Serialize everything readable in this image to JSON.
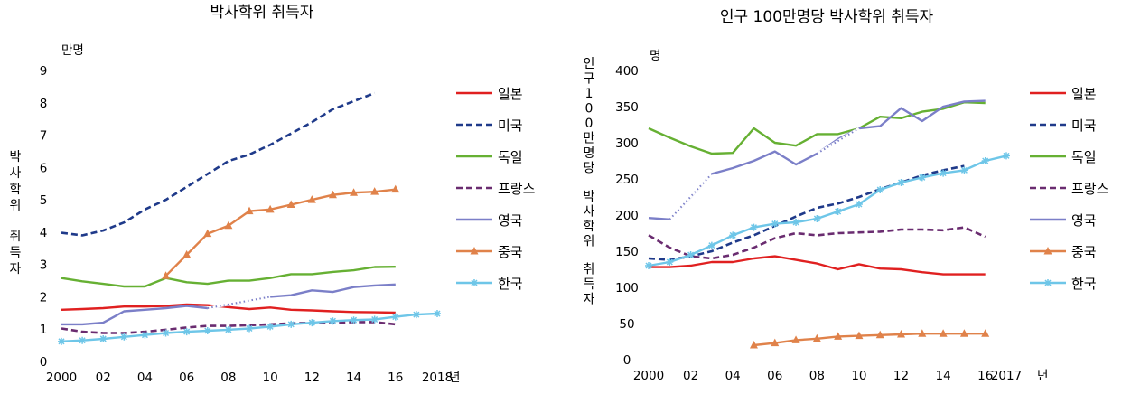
{
  "chart_data": [
    {
      "type": "line",
      "title": "박사학위 취득자",
      "unit_label": "만명",
      "ylabel": "박사학위 취득자",
      "xlabel": "년",
      "ylim": [
        0,
        9
      ],
      "yticks": [
        "0",
        "1",
        "2",
        "3",
        "4",
        "5",
        "6",
        "7",
        "8",
        "9"
      ],
      "xlim": [
        2000,
        2018
      ],
      "xticks": [
        "2000",
        "02",
        "04",
        "06",
        "08",
        "10",
        "12",
        "14",
        "16",
        "2018"
      ],
      "series": [
        {
          "name": "일본",
          "color": "#e02020",
          "style": "solid",
          "marker": "",
          "x": [
            2000,
            2001,
            2002,
            2003,
            2004,
            2005,
            2006,
            2007,
            2008,
            2009,
            2010,
            2011,
            2012,
            2013,
            2014,
            2015,
            2016
          ],
          "values": [
            1.6,
            1.62,
            1.65,
            1.7,
            1.7,
            1.72,
            1.76,
            1.74,
            1.68,
            1.62,
            1.67,
            1.6,
            1.58,
            1.55,
            1.53,
            1.52,
            1.51
          ]
        },
        {
          "name": "미국",
          "color": "#1f3a8a",
          "style": "dash",
          "marker": "",
          "x": [
            2000,
            2001,
            2002,
            2003,
            2004,
            2005,
            2006,
            2007,
            2008,
            2009,
            2010,
            2011,
            2012,
            2013,
            2014,
            2015
          ],
          "values": [
            3.98,
            3.9,
            4.05,
            4.3,
            4.7,
            5.0,
            5.4,
            5.8,
            6.2,
            6.4,
            6.7,
            7.05,
            7.4,
            7.8,
            8.05,
            8.3
          ]
        },
        {
          "name": "독일",
          "color": "#66b033",
          "style": "solid",
          "marker": "",
          "x": [
            2000,
            2001,
            2002,
            2003,
            2004,
            2005,
            2006,
            2007,
            2008,
            2009,
            2010,
            2011,
            2012,
            2013,
            2014,
            2015,
            2016
          ],
          "values": [
            2.58,
            2.48,
            2.4,
            2.32,
            2.32,
            2.58,
            2.45,
            2.4,
            2.5,
            2.5,
            2.58,
            2.7,
            2.7,
            2.77,
            2.82,
            2.92,
            2.93
          ]
        },
        {
          "name": "프랑스",
          "color": "#6a2c70",
          "style": "dash",
          "marker": "",
          "x": [
            2000,
            2001,
            2002,
            2003,
            2004,
            2005,
            2006,
            2007,
            2008,
            2009,
            2010,
            2011,
            2012,
            2013,
            2014,
            2015,
            2016
          ],
          "values": [
            1.02,
            0.92,
            0.88,
            0.88,
            0.92,
            0.98,
            1.05,
            1.1,
            1.1,
            1.12,
            1.15,
            1.18,
            1.2,
            1.2,
            1.22,
            1.22,
            1.15
          ]
        },
        {
          "name": "영국",
          "color": "#7b7fc8",
          "style": "solid",
          "marker": "",
          "x": [
            2000,
            2001,
            2002,
            2003,
            2004,
            2005,
            2006,
            2007,
            2008,
            2009,
            2010,
            2011,
            2012,
            2013,
            2014,
            2015,
            2016
          ],
          "values": [
            1.15,
            1.15,
            1.2,
            1.55,
            1.6,
            1.65,
            1.72,
            1.65,
            1.75,
            1.88,
            2.0,
            2.05,
            2.2,
            2.15,
            2.3,
            2.35,
            2.38
          ]
        },
        {
          "name": "중국",
          "color": "#e0824a",
          "style": "solid",
          "marker": "triangle",
          "x": [
            2005,
            2006,
            2007,
            2008,
            2009,
            2010,
            2011,
            2012,
            2013,
            2014,
            2015,
            2016
          ],
          "values": [
            2.65,
            3.3,
            3.95,
            4.2,
            4.65,
            4.7,
            4.85,
            5.0,
            5.15,
            5.22,
            5.25,
            5.32
          ]
        },
        {
          "name": "한국",
          "color": "#6ec6e8",
          "style": "solid",
          "marker": "star",
          "x": [
            2000,
            2001,
            2002,
            2003,
            2004,
            2005,
            2006,
            2007,
            2008,
            2009,
            2010,
            2011,
            2012,
            2013,
            2014,
            2015,
            2016,
            2017,
            2018
          ],
          "values": [
            0.62,
            0.65,
            0.7,
            0.76,
            0.82,
            0.88,
            0.92,
            0.95,
            0.98,
            1.02,
            1.08,
            1.15,
            1.2,
            1.25,
            1.28,
            1.3,
            1.38,
            1.45,
            1.48
          ]
        }
      ]
    },
    {
      "type": "line",
      "title": "인구 100만명당 박사학위 취득자",
      "unit_label": "명",
      "ylabel": "인구100만명당 박사학위 취득자",
      "xlabel": "년",
      "ylim": [
        0,
        400
      ],
      "yticks": [
        "0",
        "50",
        "100",
        "150",
        "200",
        "250",
        "300",
        "350",
        "400"
      ],
      "xlim": [
        2000,
        2017
      ],
      "xticks": [
        "2000",
        "02",
        "04",
        "06",
        "08",
        "10",
        "12",
        "14",
        "16",
        "2017"
      ],
      "series": [
        {
          "name": "일본",
          "color": "#e02020",
          "style": "solid",
          "marker": "",
          "x": [
            2000,
            2001,
            2002,
            2003,
            2004,
            2005,
            2006,
            2007,
            2008,
            2009,
            2010,
            2011,
            2012,
            2013,
            2014,
            2015,
            2016
          ],
          "values": [
            128,
            128,
            130,
            135,
            135,
            140,
            143,
            138,
            133,
            125,
            132,
            126,
            125,
            121,
            118,
            118,
            118
          ]
        },
        {
          "name": "미국",
          "color": "#1f3a8a",
          "style": "dash",
          "marker": "",
          "x": [
            2000,
            2001,
            2002,
            2003,
            2004,
            2005,
            2006,
            2007,
            2008,
            2009,
            2010,
            2011,
            2012,
            2013,
            2014,
            2015
          ],
          "values": [
            140,
            138,
            143,
            150,
            162,
            172,
            185,
            198,
            210,
            216,
            225,
            236,
            245,
            255,
            262,
            268
          ]
        },
        {
          "name": "독일",
          "color": "#66b033",
          "style": "solid",
          "marker": "",
          "x": [
            2000,
            2001,
            2002,
            2003,
            2004,
            2005,
            2006,
            2007,
            2008,
            2009,
            2010,
            2011,
            2012,
            2013,
            2014,
            2015,
            2016
          ],
          "values": [
            320,
            307,
            295,
            285,
            286,
            320,
            300,
            296,
            312,
            312,
            320,
            336,
            334,
            343,
            347,
            356,
            355
          ]
        },
        {
          "name": "프랑스",
          "color": "#6a2c70",
          "style": "dash",
          "marker": "",
          "x": [
            2000,
            2001,
            2002,
            2003,
            2004,
            2005,
            2006,
            2007,
            2008,
            2009,
            2010,
            2011,
            2012,
            2013,
            2014,
            2015,
            2016
          ],
          "values": [
            172,
            155,
            143,
            140,
            145,
            155,
            168,
            175,
            172,
            175,
            176,
            177,
            180,
            180,
            179,
            183,
            170
          ]
        },
        {
          "name": "영국",
          "color": "#7b7fc8",
          "style": "solid",
          "marker": "",
          "x": [
            2000,
            2001,
            2002,
            2003,
            2004,
            2005,
            2006,
            2007,
            2008,
            2009,
            2010,
            2011,
            2012,
            2013,
            2014,
            2015,
            2016
          ],
          "values": [
            196,
            194,
            225,
            257,
            265,
            275,
            288,
            270,
            285,
            305,
            320,
            323,
            348,
            330,
            350,
            357,
            358
          ]
        },
        {
          "name": "중국",
          "color": "#e0824a",
          "style": "solid",
          "marker": "triangle",
          "x": [
            2005,
            2006,
            2007,
            2008,
            2009,
            2010,
            2011,
            2012,
            2013,
            2014,
            2015,
            2016
          ],
          "values": [
            20,
            23,
            27,
            29,
            32,
            33,
            34,
            35,
            36,
            36,
            36,
            36
          ]
        },
        {
          "name": "한국",
          "color": "#6ec6e8",
          "style": "solid",
          "marker": "star",
          "x": [
            2000,
            2001,
            2002,
            2003,
            2004,
            2005,
            2006,
            2007,
            2008,
            2009,
            2010,
            2011,
            2012,
            2013,
            2014,
            2015,
            2016,
            2017
          ],
          "values": [
            130,
            135,
            145,
            158,
            172,
            183,
            188,
            190,
            195,
            205,
            215,
            235,
            245,
            252,
            258,
            262,
            275,
            282
          ]
        }
      ]
    }
  ]
}
